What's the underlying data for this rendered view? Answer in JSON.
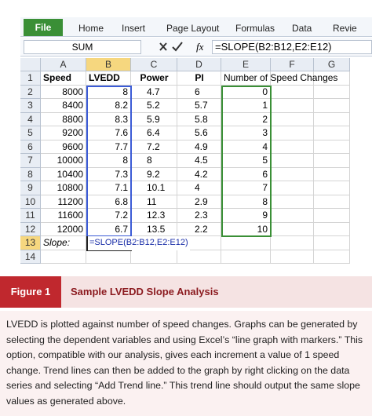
{
  "ribbon": {
    "tabs": [
      "File",
      "Home",
      "Insert",
      "Page Layout",
      "Formulas",
      "Data",
      "Revie"
    ]
  },
  "formula_bar": {
    "name_box": "SUM",
    "function_icon": "fx",
    "formula": "=SLOPE(B2:B12,E2:E12)"
  },
  "sheet": {
    "columns": [
      "A",
      "B",
      "C",
      "D",
      "E",
      "F",
      "G"
    ],
    "row_numbers": [
      1,
      2,
      3,
      4,
      5,
      6,
      7,
      8,
      9,
      10,
      11,
      12,
      13,
      14
    ],
    "header": [
      "Speed",
      "LVEDD",
      "Power",
      "PI",
      "Number of Speed Changes"
    ],
    "rows": [
      [
        8000,
        8,
        4.7,
        6,
        0
      ],
      [
        8400,
        8.2,
        5.2,
        5.7,
        1
      ],
      [
        8800,
        8.3,
        5.9,
        5.8,
        2
      ],
      [
        9200,
        7.6,
        6.4,
        5.6,
        3
      ],
      [
        9600,
        7.7,
        7.2,
        4.9,
        4
      ],
      [
        10000,
        8,
        8,
        4.5,
        5
      ],
      [
        10400,
        7.3,
        9.2,
        4.2,
        6
      ],
      [
        10800,
        7.1,
        10.1,
        4,
        7
      ],
      [
        11200,
        6.8,
        11,
        2.9,
        8
      ],
      [
        11600,
        7.2,
        12.3,
        2.3,
        9
      ],
      [
        12000,
        6.7,
        13.5,
        2.2,
        10
      ]
    ],
    "slope_label": "Slope:",
    "slope_formula": "=SLOPE(B2:B12,E2:E12)"
  },
  "figure": {
    "label": "Figure 1",
    "title": "Sample LVEDD Slope Analysis",
    "caption": "LVEDD is plotted against number of speed changes. Graphs can be generated by selecting the dependent variables and using Excel’s “line graph with markers.” This option, compatible with our analysis, gives each increment a value of 1 speed change. Trend lines can then be added to the graph by right clicking on the data series and selecting “Add Trend line.” This trend line should output the same slope values as generated above."
  }
}
